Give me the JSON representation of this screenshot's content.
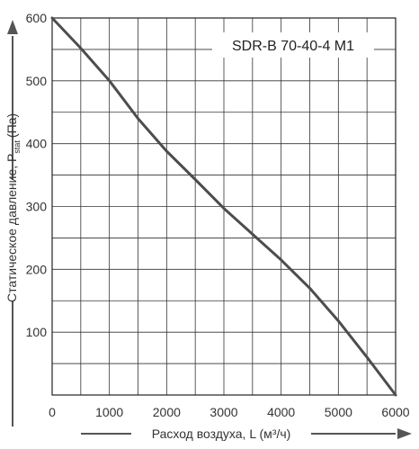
{
  "chart_data": {
    "type": "line",
    "title": "",
    "xlabel": "Расход воздуха, L (м³/ч)",
    "ylabel": {
      "main": "Статическое давление, P",
      "sub": "stat",
      "unit": "(Па)"
    },
    "xlim": [
      0,
      6000
    ],
    "ylim": [
      0,
      600
    ],
    "x_ticks": [
      0,
      1000,
      2000,
      3000,
      4000,
      5000,
      6000
    ],
    "y_ticks": [
      100,
      200,
      300,
      400,
      500,
      600
    ],
    "x_tick_labels": [
      "0",
      "1000",
      "2000",
      "3000",
      "4000",
      "5000",
      "6000"
    ],
    "y_tick_labels": [
      "100",
      "200",
      "300",
      "400",
      "500",
      "600"
    ],
    "x_grid_step": 500,
    "y_grid_step": 50,
    "grid": true,
    "legend": "none",
    "series": [
      {
        "name": "SDR-B 70-40-4 M1",
        "color": "#4d4d4d",
        "x": [
          0,
          500,
          1000,
          1500,
          2000,
          2500,
          3000,
          3500,
          4000,
          4500,
          5000,
          5500,
          6000
        ],
        "y": [
          600,
          552,
          500,
          440,
          388,
          343,
          297,
          256,
          215,
          170,
          118,
          60,
          0
        ]
      }
    ]
  }
}
